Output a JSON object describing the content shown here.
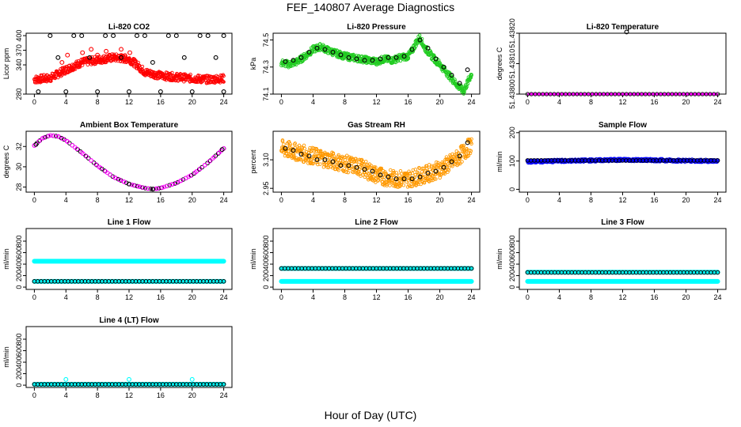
{
  "figure": {
    "title": "FEF_140807  Average Diagnostics",
    "xlabel": "Hour of Day (UTC)"
  },
  "chart_data": [
    {
      "type": "scatter",
      "title": "Li-820 CO2",
      "ylabel": "Licor ppm",
      "xlim": [
        0,
        24
      ],
      "ylim": [
        280,
        405
      ],
      "xticks": [
        "0",
        "4",
        "8",
        "12",
        "16",
        "20",
        "24"
      ],
      "yticks": [
        {
          "v": 280,
          "label": "280"
        },
        {
          "v": 340,
          "label": "340"
        },
        {
          "v": 370,
          "label": "370"
        },
        {
          "v": 400,
          "label": "400"
        }
      ],
      "series": [
        {
          "color": "#ff0000",
          "kind": "band",
          "x": [
            0,
            2,
            4,
            6,
            8,
            10,
            12,
            13,
            14,
            16,
            18,
            20,
            22,
            24
          ],
          "y": [
            310,
            313,
            330,
            345,
            350,
            355,
            352,
            340,
            325,
            318,
            315,
            312,
            310,
            312
          ],
          "spread": 8
        },
        {
          "color": "#ff0000",
          "kind": "points",
          "x": [
            3.5,
            4.2,
            5.0,
            6.1,
            7.2,
            8.0,
            9.1,
            10.2,
            11.0,
            12.1
          ],
          "y": [
            345,
            360,
            338,
            365,
            372,
            360,
            368,
            355,
            372,
            365
          ]
        },
        {
          "color": "#000000",
          "kind": "points",
          "x": [
            2,
            5,
            6,
            9,
            10,
            13,
            14,
            17,
            18,
            21,
            22,
            24,
            0.5,
            4,
            8,
            12,
            16,
            20,
            24,
            3,
            7,
            11,
            15,
            19,
            23
          ],
          "y": [
            400,
            400,
            400,
            400,
            400,
            400,
            400,
            400,
            400,
            400,
            400,
            400,
            285,
            285,
            285,
            285,
            285,
            285,
            285,
            355,
            355,
            355,
            345,
            355,
            355
          ]
        }
      ]
    },
    {
      "type": "scatter",
      "title": "Li-820 Pressure",
      "ylabel": "kPa",
      "xlim": [
        0,
        24
      ],
      "ylim": [
        74.1,
        74.55
      ],
      "xticks": [
        "0",
        "4",
        "8",
        "12",
        "16",
        "20",
        "24"
      ],
      "yticks": [
        {
          "v": 74.1,
          "label": "74.1"
        },
        {
          "v": 74.3,
          "label": "74.3"
        },
        {
          "v": 74.5,
          "label": "74.5"
        }
      ],
      "series": [
        {
          "color": "#22cc22",
          "kind": "band",
          "x": [
            0,
            1,
            2,
            3,
            4,
            5,
            6,
            8,
            10,
            12,
            13,
            14,
            15,
            16,
            16.5,
            17,
            17.5,
            18,
            19,
            20,
            21,
            22,
            23,
            24
          ],
          "y": [
            74.33,
            74.32,
            74.34,
            74.38,
            74.43,
            74.45,
            74.42,
            74.38,
            74.36,
            74.34,
            74.36,
            74.35,
            74.37,
            74.38,
            74.42,
            74.48,
            74.52,
            74.45,
            74.38,
            74.32,
            74.25,
            74.18,
            74.12,
            74.25
          ],
          "spread": 0.025
        },
        {
          "color": "#000000",
          "kind": "points",
          "x": [
            0.5,
            1.5,
            2.5,
            3.5,
            4.5,
            5.5,
            6.5,
            7.5,
            8.5,
            9.5,
            10.5,
            11.5,
            12.5,
            13.5,
            14.5,
            15.5,
            16.5,
            17.5,
            18.5,
            19.5,
            20.5,
            21.5,
            22.5,
            23.5
          ],
          "y": [
            74.34,
            74.35,
            74.37,
            74.41,
            74.44,
            74.43,
            74.41,
            74.39,
            74.37,
            74.36,
            74.35,
            74.35,
            74.36,
            74.37,
            74.37,
            74.38,
            74.43,
            74.5,
            74.44,
            74.36,
            74.3,
            74.24,
            74.18,
            74.28
          ]
        }
      ]
    },
    {
      "type": "scatter",
      "title": "Li-820 Temperature",
      "ylabel": "degrees C",
      "xlim": [
        0,
        24
      ],
      "ylim": [
        0,
        1
      ],
      "xticks": [
        "0",
        "4",
        "8",
        "12",
        "16",
        "20",
        "24"
      ],
      "yticks": [
        {
          "v": 0.0,
          "label": "51.43800"
        },
        {
          "v": 0.5,
          "label": "51.43810"
        },
        {
          "v": 1.0,
          "label": "51.43820"
        }
      ],
      "series": [
        {
          "color": "#ff00ff",
          "kind": "flatline",
          "y": 0.0
        },
        {
          "color": "#000000",
          "kind": "points",
          "x": [
            12.5
          ],
          "y": [
            1.02
          ]
        }
      ]
    },
    {
      "type": "scatter",
      "title": "Ambient Box Temperature",
      "ylabel": "degrees C",
      "xlim": [
        0,
        24
      ],
      "ylim": [
        27.5,
        33.5
      ],
      "xticks": [
        "0",
        "4",
        "8",
        "12",
        "16",
        "20",
        "24"
      ],
      "yticks": [
        {
          "v": 28,
          "label": "28"
        },
        {
          "v": 30,
          "label": "30"
        },
        {
          "v": 32,
          "label": "32"
        }
      ],
      "series": [
        {
          "color": "#ff00ff",
          "kind": "curve",
          "x": [
            0,
            1,
            2,
            3,
            4,
            6,
            8,
            10,
            12,
            14,
            15,
            16,
            18,
            20,
            22,
            24
          ],
          "y": [
            32.1,
            32.8,
            33.1,
            33.0,
            32.6,
            31.4,
            30.1,
            29.0,
            28.3,
            27.9,
            27.8,
            27.9,
            28.4,
            29.2,
            30.4,
            31.8
          ]
        },
        {
          "color": "#000000",
          "kind": "points",
          "x": [
            0.2,
            12.0,
            15.0,
            23.8
          ],
          "y": [
            32.2,
            28.3,
            27.8,
            31.7
          ]
        }
      ]
    },
    {
      "type": "scatter",
      "title": "Gas Stream RH",
      "ylabel": "percent",
      "xlim": [
        0,
        24
      ],
      "ylim": [
        2.93,
        3.25
      ],
      "xticks": [
        "0",
        "4",
        "8",
        "12",
        "16",
        "20",
        "24"
      ],
      "yticks": [
        {
          "v": 2.95,
          "label": "2.95"
        },
        {
          "v": 3.1,
          "label": "3.10"
        }
      ],
      "series": [
        {
          "color": "#ff9900",
          "kind": "band",
          "x": [
            0,
            2,
            4,
            6,
            8,
            10,
            12,
            14,
            16,
            18,
            20,
            22,
            24
          ],
          "y": [
            3.16,
            3.14,
            3.12,
            3.1,
            3.08,
            3.06,
            3.02,
            3.0,
            3.0,
            3.02,
            3.05,
            3.1,
            3.18
          ],
          "spread": 0.045
        },
        {
          "color": "#000000",
          "kind": "points",
          "x": [
            0.5,
            1.5,
            2.5,
            3.5,
            4.5,
            5.5,
            6.5,
            7.5,
            8.5,
            9.5,
            10.5,
            11.5,
            12.5,
            13.5,
            14.5,
            15.5,
            16.5,
            17.5,
            18.5,
            19.5,
            20.5,
            21.5,
            22.5,
            23.5
          ],
          "y": [
            3.16,
            3.15,
            3.13,
            3.12,
            3.1,
            3.1,
            3.09,
            3.07,
            3.07,
            3.06,
            3.05,
            3.04,
            3.02,
            3.01,
            3.0,
            3.0,
            3.0,
            3.01,
            3.03,
            3.04,
            3.06,
            3.09,
            3.12,
            3.19
          ]
        }
      ]
    },
    {
      "type": "scatter",
      "title": "Sample Flow",
      "ylabel": "ml/min",
      "xlim": [
        0,
        24
      ],
      "ylim": [
        -10,
        205
      ],
      "xticks": [
        "0",
        "4",
        "8",
        "12",
        "16",
        "20",
        "24"
      ],
      "yticks": [
        {
          "v": 0,
          "label": "0"
        },
        {
          "v": 100,
          "label": "100"
        },
        {
          "v": 200,
          "label": "200"
        }
      ],
      "series": [
        {
          "color": "#0000ff",
          "kind": "band",
          "x": [
            0,
            4,
            8,
            12,
            16,
            20,
            24
          ],
          "y": [
            98,
            100,
            102,
            104,
            103,
            101,
            100
          ],
          "spread": 5
        },
        {
          "color": "#000000",
          "kind": "flatline_pts",
          "y": 102
        }
      ]
    },
    {
      "type": "scatter",
      "title": "Line 1 Flow",
      "ylabel": "ml/min",
      "xlim": [
        0,
        24
      ],
      "ylim": [
        -40,
        1020
      ],
      "xticks": [
        "0",
        "4",
        "8",
        "12",
        "16",
        "20",
        "24"
      ],
      "yticks": [
        {
          "v": 0,
          "label": "0"
        },
        {
          "v": 200,
          "label": "200"
        },
        {
          "v": 400,
          "label": "400"
        },
        {
          "v": 600,
          "label": "600"
        },
        {
          "v": 800,
          "label": "800"
        }
      ],
      "series": [
        {
          "color": "#00ffff",
          "kind": "thickline",
          "y": 450
        },
        {
          "color": "#00ffff",
          "kind": "thickline",
          "y": 100
        },
        {
          "color": "#000000",
          "kind": "flatline_pts",
          "y": 100
        }
      ]
    },
    {
      "type": "scatter",
      "title": "Line 2 Flow",
      "ylabel": "ml/min",
      "xlim": [
        0,
        24
      ],
      "ylim": [
        -40,
        1020
      ],
      "xticks": [
        "0",
        "4",
        "8",
        "12",
        "16",
        "20",
        "24"
      ],
      "yticks": [
        {
          "v": 0,
          "label": "0"
        },
        {
          "v": 200,
          "label": "200"
        },
        {
          "v": 400,
          "label": "400"
        },
        {
          "v": 600,
          "label": "600"
        },
        {
          "v": 800,
          "label": "800"
        }
      ],
      "series": [
        {
          "color": "#00ffff",
          "kind": "thickline",
          "y": 325
        },
        {
          "color": "#00ffff",
          "kind": "thickline",
          "y": 100
        },
        {
          "color": "#000000",
          "kind": "flatline_pts",
          "y": 325
        }
      ]
    },
    {
      "type": "scatter",
      "title": "Line 3 Flow",
      "ylabel": "ml/min",
      "xlim": [
        0,
        24
      ],
      "ylim": [
        -40,
        1020
      ],
      "xticks": [
        "0",
        "4",
        "8",
        "12",
        "16",
        "20",
        "24"
      ],
      "yticks": [
        {
          "v": 0,
          "label": "0"
        },
        {
          "v": 200,
          "label": "200"
        },
        {
          "v": 400,
          "label": "400"
        },
        {
          "v": 600,
          "label": "600"
        },
        {
          "v": 800,
          "label": "800"
        }
      ],
      "series": [
        {
          "color": "#00ffff",
          "kind": "thickline",
          "y": 260
        },
        {
          "color": "#00ffff",
          "kind": "thickline",
          "y": 100
        },
        {
          "color": "#000000",
          "kind": "flatline_pts",
          "y": 255
        }
      ]
    },
    {
      "type": "scatter",
      "title": "Line 4 (LT) Flow",
      "ylabel": "ml/min",
      "xlim": [
        0,
        24
      ],
      "ylim": [
        -40,
        1020
      ],
      "xticks": [
        "0",
        "4",
        "8",
        "12",
        "16",
        "20",
        "24"
      ],
      "yticks": [
        {
          "v": 0,
          "label": "0"
        },
        {
          "v": 200,
          "label": "200"
        },
        {
          "v": 400,
          "label": "400"
        },
        {
          "v": 600,
          "label": "600"
        },
        {
          "v": 800,
          "label": "800"
        }
      ],
      "series": [
        {
          "color": "#00ffff",
          "kind": "thickline",
          "y": 15
        },
        {
          "color": "#00ffff",
          "kind": "points",
          "x": [
            4,
            12,
            20
          ],
          "y": [
            100,
            100,
            100
          ]
        },
        {
          "color": "#000000",
          "kind": "flatline_pts",
          "y": 15
        }
      ]
    }
  ]
}
